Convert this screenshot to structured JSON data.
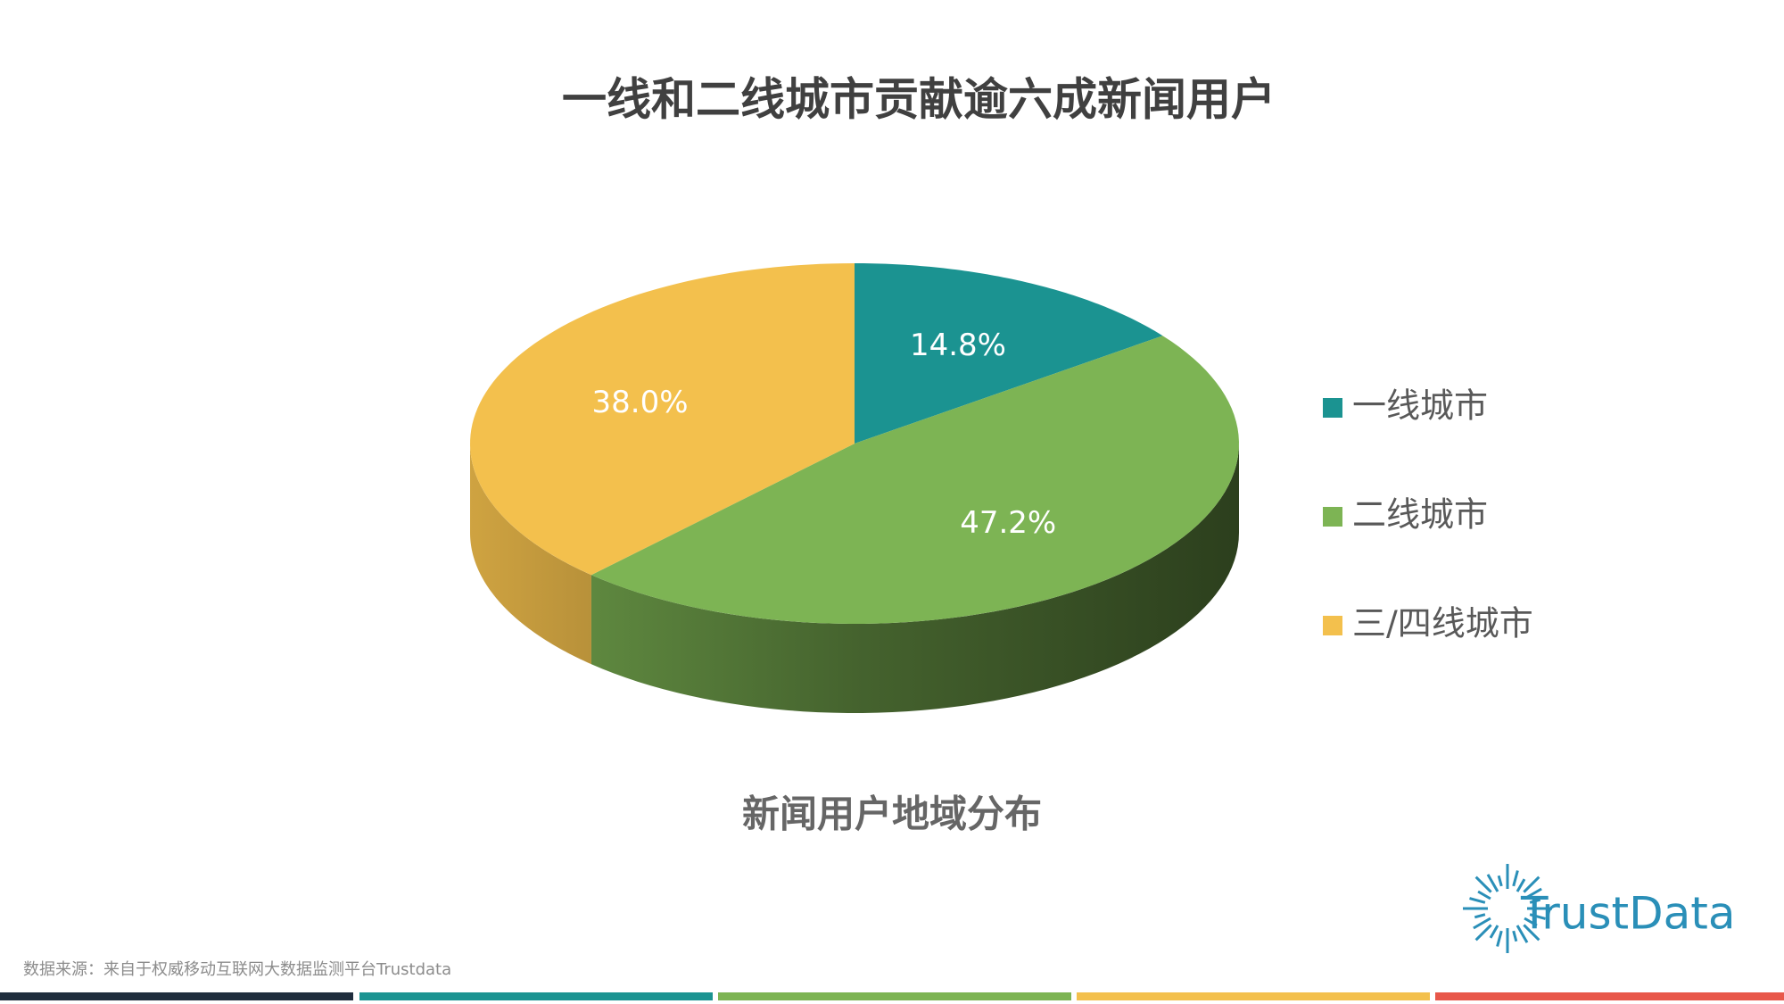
{
  "chart_data": {
    "type": "pie",
    "title": "一线和二线城市贡献逾六成新闻用户",
    "caption": "新闻用户地域分布",
    "categories": [
      "一线城市",
      "二线城市",
      "三/四线城市"
    ],
    "values": [
      14.8,
      47.2,
      38.0
    ],
    "value_labels": [
      "14.8%",
      "47.2%",
      "38.0%"
    ],
    "colors": [
      "#1b9391",
      "#7db454",
      "#f3c04d"
    ],
    "legend": "right"
  },
  "source": "数据来源：来自于权威移动互联网大数据监测平台Trustdata",
  "logo": "TrustData"
}
